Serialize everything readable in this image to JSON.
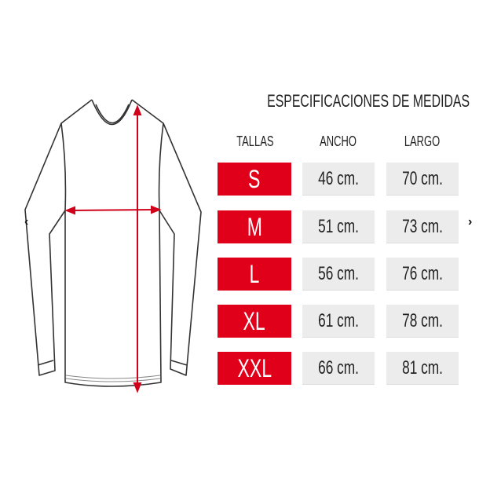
{
  "title": "ESPECIFICACIONES DE MEDIDAS",
  "headers": {
    "sizes": "TALLAS",
    "width": "ANCHO",
    "length": "LARGO"
  },
  "rows": [
    {
      "size": "S",
      "width": "46 cm.",
      "length": "70 cm."
    },
    {
      "size": "M",
      "width": "51 cm.",
      "length": "73 cm."
    },
    {
      "size": "L",
      "width": "56 cm.",
      "length": "76 cm."
    },
    {
      "size": "XL",
      "width": "61 cm.",
      "length": "78 cm."
    },
    {
      "size": "XXL",
      "width": "66 cm.",
      "length": "81 cm."
    }
  ],
  "nav": {
    "prev": "‹",
    "next": "›"
  },
  "icons": {
    "prev": "chevron-left-icon",
    "next": "chevron-right-icon",
    "illustration": "long-sleeve-shirt"
  },
  "colors": {
    "size_cell": "#e1001a",
    "value_cell": "#ececec",
    "measure_arrows": "#d0021b"
  }
}
